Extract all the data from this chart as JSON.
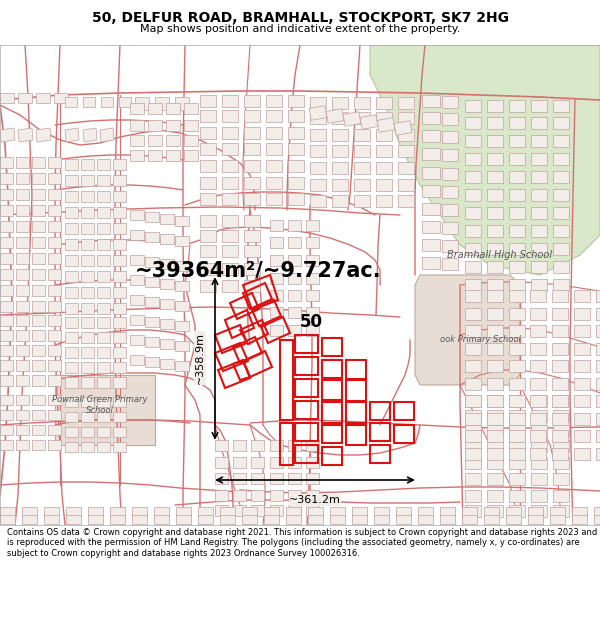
{
  "title_line1": "50, DELFUR ROAD, BRAMHALL, STOCKPORT, SK7 2HG",
  "title_line2": "Map shows position and indicative extent of the property.",
  "area_text": "~39364m²/~9.727ac.",
  "dim_vertical": "~358.9m",
  "dim_horizontal": "~361.2m",
  "label_50": "50",
  "label_school": "Bramhall High School",
  "label_primary": "Pownall Green Primary\nSchool",
  "label_brook": "ook Primary School",
  "footer_text": "Contains OS data © Crown copyright and database right 2021. This information is subject to Crown copyright and database rights 2023 and is reproduced with the permission of HM Land Registry. The polygons (including the associated geometry, namely x, y co-ordinates) are subject to Crown copyright and database rights 2023 Ordnance Survey 100026316.",
  "map_bg": "#f2ede8",
  "road_pink": "#e8b0b0",
  "road_edge": "#d47070",
  "bldg_fill": "#f0ebe5",
  "bldg_edge": "#c0a0a0",
  "highlight_color": "#dd1111",
  "green_color": "#d8e8c8",
  "green_edge": "#b0c8a0",
  "school_fill": "#e8ddd5",
  "school_edge": "#c0a898",
  "white_bg": "#ffffff",
  "gray_text": "#888888",
  "title_fontsize": 10,
  "subtitle_fontsize": 8,
  "area_fontsize": 15,
  "dim_fontsize": 8,
  "label_fontsize": 8,
  "footer_fontsize": 6,
  "fig_width": 6.0,
  "fig_height": 6.25,
  "dpi": 100
}
